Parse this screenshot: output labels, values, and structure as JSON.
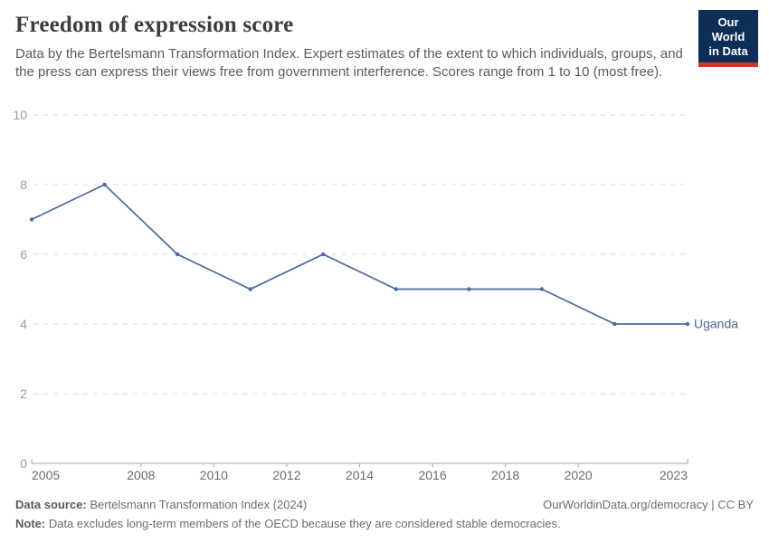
{
  "header": {
    "title": "Freedom of expression score",
    "subtitle": "Data by the Bertelsmann Transformation Index. Expert estimates of the extent to which individuals, groups, and the press can express their views free from government interference. Scores range from 1 to 10 (most free).",
    "logo": {
      "line1": "Our World",
      "line2": "in Data"
    }
  },
  "chart_data": {
    "type": "line",
    "title": "Freedom of expression score",
    "x": [
      2005,
      2007,
      2009,
      2011,
      2013,
      2015,
      2017,
      2019,
      2021,
      2023
    ],
    "series": [
      {
        "name": "Uganda",
        "color": "#4c6a9c",
        "values": [
          7,
          8,
          6,
          5,
          6,
          5,
          5,
          5,
          4,
          4
        ]
      }
    ],
    "x_ticks": [
      2005,
      2008,
      2010,
      2012,
      2014,
      2016,
      2018,
      2020,
      2023
    ],
    "y_ticks": [
      0,
      2,
      4,
      6,
      8,
      10
    ],
    "xlim": [
      2005,
      2023
    ],
    "ylim": [
      0,
      10
    ],
    "grid": "horizontal-dashed",
    "legend_position": "end-of-line-label"
  },
  "colors": {
    "series": "#4c6a9c",
    "grid": "#dcdcdc",
    "axis": "#a3a3a3",
    "y_tick_label": "#9b9b9b",
    "x_tick_label": "#6b6b6b",
    "logo_bg": "#0d2e57",
    "logo_bar": "#d0352a"
  },
  "footer": {
    "source_label": "Data source:",
    "source_value": " Bertelsmann Transformation Index (2024)",
    "link": "OurWorldinData.org/democracy | CC BY",
    "note_label": "Note:",
    "note_value": " Data excludes long-term members of the OECD because they are considered stable democracies."
  }
}
